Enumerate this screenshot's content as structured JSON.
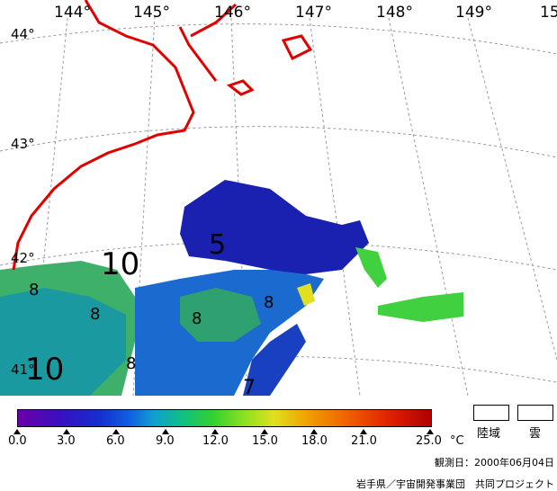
{
  "map": {
    "longitude_labels": [
      "144°",
      "145°",
      "146°",
      "147°",
      "148°",
      "149°",
      "15"
    ],
    "latitude_labels": [
      "44°",
      "43°",
      "42°",
      "41°"
    ],
    "contour_labels": [
      "10",
      "5",
      "8",
      "8",
      "8",
      "8",
      "10",
      "8",
      "7"
    ]
  },
  "colorbar": {
    "tick_labels": [
      "0.0",
      "3.0",
      "6.0",
      "9.0",
      "12.0",
      "15.0",
      "18.0",
      "21.0",
      "25.0"
    ],
    "unit": "°C",
    "min": 0.0,
    "max": 25.0
  },
  "legend": {
    "land_label": "陸域",
    "cloud_label": "雲"
  },
  "footer": {
    "observation_date": "観測日：2000年06月04日",
    "credit": "岩手県／宇宙開発事業団　共同プロジェクト"
  },
  "colors": {
    "coastline": "#e00000",
    "graticule": "#9a9a9a"
  }
}
